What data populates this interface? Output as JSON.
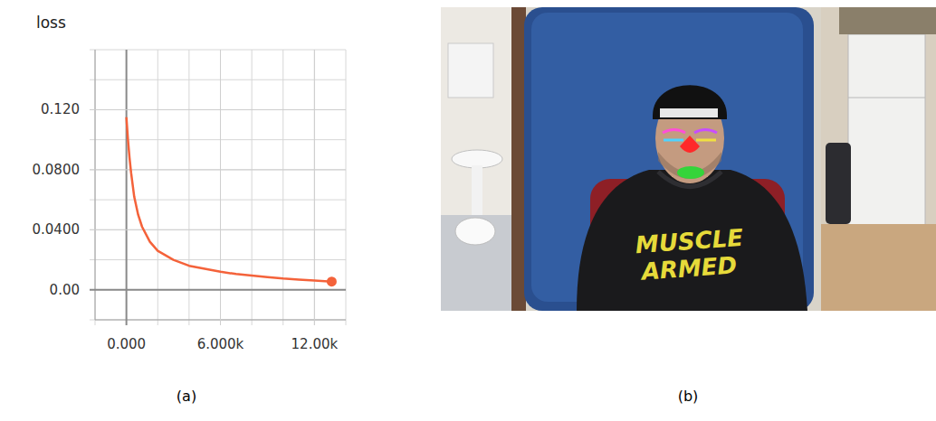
{
  "chart_data": {
    "type": "line",
    "title": "loss",
    "x": [
      0,
      100,
      200,
      300,
      500,
      750,
      1000,
      1500,
      2000,
      2500,
      3000,
      4000,
      5000,
      6000,
      7000,
      8000,
      9000,
      10000,
      11000,
      12000,
      13100
    ],
    "series": [
      {
        "name": "loss",
        "color": "#f4623a",
        "marker": "end",
        "values": [
          0.115,
          0.1,
          0.088,
          0.078,
          0.062,
          0.05,
          0.042,
          0.032,
          0.026,
          0.023,
          0.02,
          0.016,
          0.014,
          0.012,
          0.0105,
          0.0095,
          0.0085,
          0.0075,
          0.0068,
          0.0062,
          0.0055
        ]
      }
    ],
    "xlim": [
      -2000,
      14000
    ],
    "xticks": [
      {
        "value": 0,
        "label": "0.000"
      },
      {
        "value": 6000,
        "label": "6.000k"
      },
      {
        "value": 12000,
        "label": "12.00k"
      }
    ],
    "ylim": [
      -0.02,
      0.16
    ],
    "yticks": [
      {
        "value": 0,
        "label": "0.00"
      },
      {
        "value": 0.04,
        "label": "0.0400"
      },
      {
        "value": 0.08,
        "label": "0.0800"
      },
      {
        "value": 0.12,
        "label": "0.120"
      }
    ],
    "grid": true
  },
  "panels": {
    "a": "(a)",
    "b": "(b)"
  },
  "photo": {
    "shirt_text": [
      "MUSCLE",
      "ARMED"
    ]
  }
}
